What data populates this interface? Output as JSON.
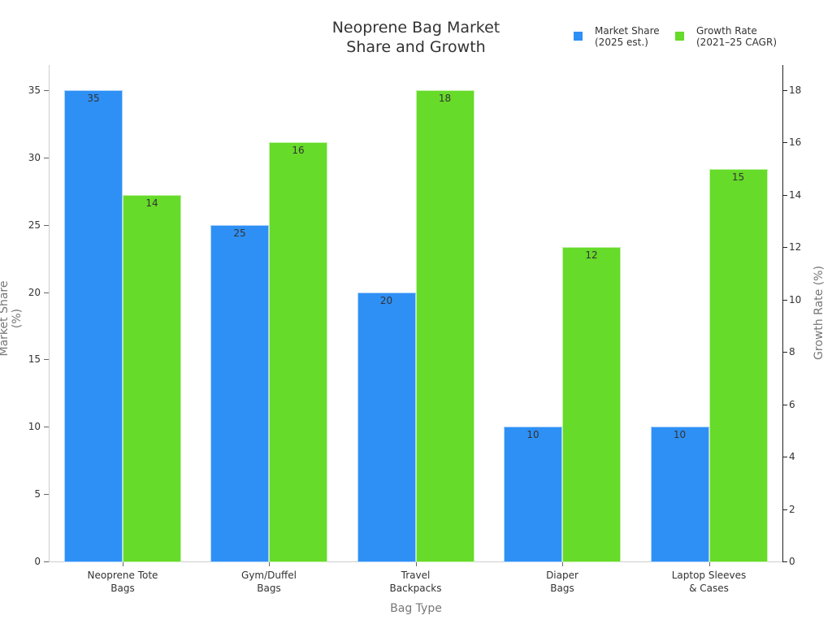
{
  "chart_data": {
    "type": "bar",
    "title": "Neoprene Bag Market Share and Growth",
    "title_lines": [
      "Neoprene Bag Market",
      "Share and Growth"
    ],
    "xlabel": "Bag Type",
    "ylabel": "Market Share (%)",
    "ylabel_right": "Growth Rate (%)",
    "categories": [
      "Neoprene Tote Bags",
      "Gym/Duffel Bags",
      "Travel Backpacks",
      "Diaper Bags",
      "Laptop Sleeves & Cases"
    ],
    "category_lines": [
      [
        "Neoprene Tote",
        "Bags"
      ],
      [
        "Gym/Duffel",
        "Bags"
      ],
      [
        "Travel",
        "Backpacks"
      ],
      [
        "Diaper",
        "Bags"
      ],
      [
        "Laptop Sleeves",
        "& Cases"
      ]
    ],
    "series": [
      {
        "name": "Market Share (2025 est.)",
        "legend_lines": [
          "Market Share",
          "(2025 est.)"
        ],
        "axis": "left",
        "color": "#2E90F5",
        "values": [
          35,
          25,
          20,
          10,
          10
        ]
      },
      {
        "name": "Growth Rate (2021–25 CAGR)",
        "legend_lines": [
          "Growth Rate",
          "(2021–25 CAGR)"
        ],
        "axis": "right",
        "color": "#66DB29",
        "values": [
          14,
          16,
          18,
          12,
          15
        ]
      }
    ],
    "ylim": [
      0,
      36.8
    ],
    "ylim_right": [
      0,
      18.9
    ],
    "yticks": [
      0,
      5,
      10,
      15,
      20,
      25,
      30,
      35
    ],
    "yticks_right": [
      0,
      2,
      4,
      6,
      8,
      10,
      12,
      14,
      16,
      18
    ],
    "grid": false,
    "legend_position": "top-right",
    "data_labels": true
  }
}
